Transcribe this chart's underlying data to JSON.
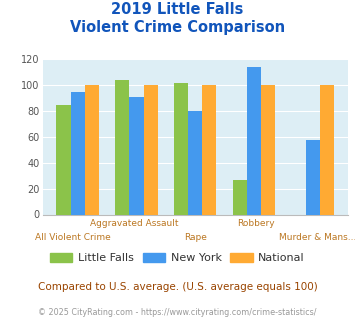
{
  "title_line1": "2019 Little Falls",
  "title_line2": "Violent Crime Comparison",
  "categories": [
    "All Violent Crime",
    "Aggravated Assault",
    "Rape",
    "Robbery",
    "Murder & Mans..."
  ],
  "top_labels": [
    "",
    "Aggravated Assault",
    "",
    "Robbery",
    ""
  ],
  "bot_labels": [
    "All Violent Crime",
    "",
    "Rape",
    "",
    "Murder & Mans..."
  ],
  "series": {
    "Little Falls": [
      85,
      104,
      102,
      27,
      0
    ],
    "New York": [
      95,
      91,
      80,
      114,
      58
    ],
    "National": [
      100,
      100,
      100,
      100,
      100
    ]
  },
  "colors": {
    "Little Falls": "#8bc34a",
    "New York": "#4499ee",
    "National": "#ffaa33"
  },
  "ylim": [
    0,
    120
  ],
  "yticks": [
    0,
    20,
    40,
    60,
    80,
    100,
    120
  ],
  "background_color": "#ddeef5",
  "title_color": "#1155bb",
  "xlabel_top_color": "#bb7722",
  "xlabel_bot_color": "#bb7722",
  "footer_note": "Compared to U.S. average. (U.S. average equals 100)",
  "footer_copy": "© 2025 CityRating.com - https://www.cityrating.com/crime-statistics/",
  "footer_note_color": "#994400",
  "footer_copy_color": "#999999"
}
